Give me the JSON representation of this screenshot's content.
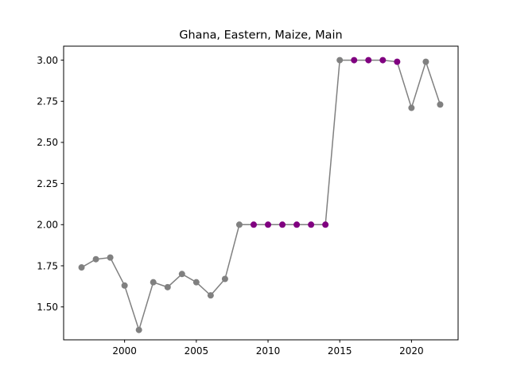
{
  "chart_data": {
    "type": "line",
    "title": "Ghana, Eastern, Maize, Main",
    "xlabel": "",
    "ylabel": "",
    "xlim": [
      1995.75,
      2023.25
    ],
    "ylim": [
      1.3,
      3.085
    ],
    "x_ticks": [
      2000,
      2005,
      2010,
      2015,
      2020
    ],
    "y_ticks": [
      1.5,
      1.75,
      2.0,
      2.25,
      2.5,
      2.75,
      3.0
    ],
    "x_tick_labels": [
      "2000",
      "2005",
      "2010",
      "2015",
      "2020"
    ],
    "y_tick_labels": [
      "1.50",
      "1.75",
      "2.00",
      "2.25",
      "2.50",
      "2.75",
      "3.00"
    ],
    "grid": false,
    "line_color": "#808080",
    "series": [
      {
        "x": [
          1997,
          1998,
          1999,
          2000,
          2001,
          2002,
          2003,
          2004,
          2005,
          2006,
          2007,
          2008,
          2009,
          2010,
          2011,
          2012,
          2013,
          2014,
          2015,
          2016,
          2017,
          2018,
          2019,
          2020,
          2021,
          2022
        ],
        "values": [
          1.74,
          1.79,
          1.8,
          1.63,
          1.36,
          1.65,
          1.62,
          1.7,
          1.65,
          1.57,
          1.67,
          2.0,
          2.0,
          2.0,
          2.0,
          2.0,
          2.0,
          2.0,
          3.0,
          3.0,
          3.0,
          3.0,
          2.99,
          2.71,
          2.99,
          2.73
        ],
        "marker_colors": [
          "#808080",
          "#808080",
          "#808080",
          "#808080",
          "#808080",
          "#808080",
          "#808080",
          "#808080",
          "#808080",
          "#808080",
          "#808080",
          "#808080",
          "#800080",
          "#800080",
          "#800080",
          "#800080",
          "#800080",
          "#800080",
          "#808080",
          "#800080",
          "#800080",
          "#800080",
          "#800080",
          "#808080",
          "#808080",
          "#808080"
        ]
      }
    ]
  }
}
